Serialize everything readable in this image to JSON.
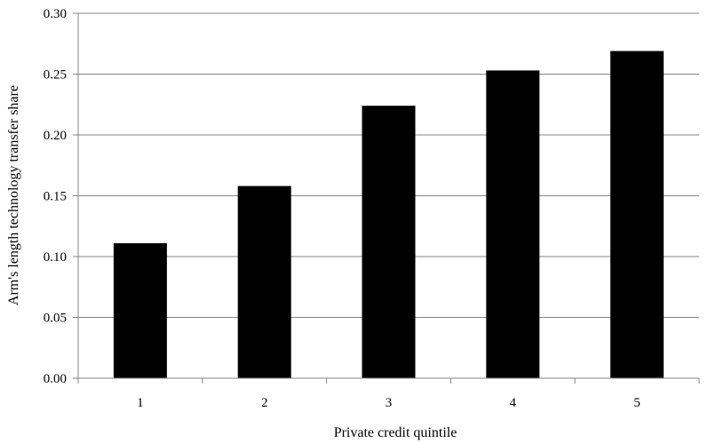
{
  "chart_data": {
    "type": "bar",
    "categories": [
      "1",
      "2",
      "3",
      "4",
      "5"
    ],
    "values": [
      0.111,
      0.158,
      0.224,
      0.253,
      0.269
    ],
    "xlabel": "Private credit quintile",
    "ylabel": "Arm's length technology transfer share",
    "ylim": [
      0,
      0.3
    ],
    "yticks": [
      "0.00",
      "0.05",
      "0.10",
      "0.15",
      "0.20",
      "0.25",
      "0.30"
    ],
    "grid": true,
    "legend": "none",
    "bar_color": "#000000",
    "grid_color": "#868686"
  }
}
